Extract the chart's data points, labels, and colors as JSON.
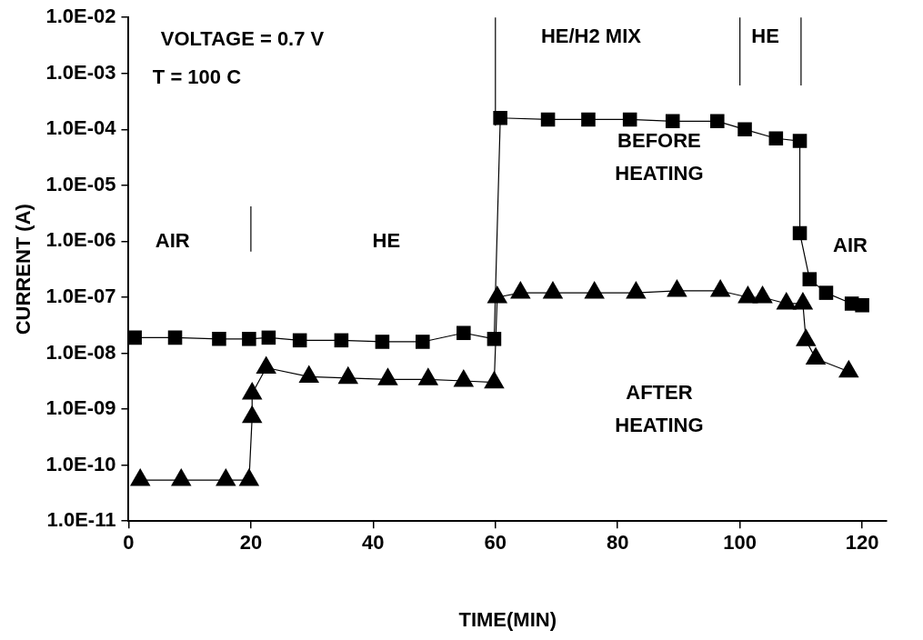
{
  "chart_data": {
    "type": "line",
    "xlabel": "TIME(MIN)",
    "ylabel": "CURRENT (A)",
    "log": "y",
    "grid": false,
    "legend": false,
    "line_style": "solid",
    "xlim": [
      0,
      124
    ],
    "xticks": [
      0,
      20,
      40,
      60,
      80,
      100,
      120
    ],
    "ylim": [
      1e-11,
      0.01
    ],
    "yticks": [
      {
        "value": 1e-11,
        "label": "1.0E-11"
      },
      {
        "value": 1e-10,
        "label": "1.0E-10"
      },
      {
        "value": 1e-09,
        "label": "1.0E-09"
      },
      {
        "value": 1e-08,
        "label": "1.0E-08"
      },
      {
        "value": 1e-07,
        "label": "1.0E-07"
      },
      {
        "value": 1e-06,
        "label": "1.0E-06"
      },
      {
        "value": 1e-05,
        "label": "1.0E-05"
      },
      {
        "value": 0.0001,
        "label": "1.0E-04"
      },
      {
        "value": 0.001,
        "label": "1.0E-03"
      },
      {
        "value": 0.01,
        "label": "1.0E-02"
      }
    ],
    "series": [
      {
        "color": "#000000",
        "marker": "square",
        "x": [
          1,
          7.6,
          14.8,
          19.7,
          22.9,
          28,
          34.8,
          41.5,
          48.1,
          54.8,
          59.8,
          60.8,
          68.6,
          75.2,
          82,
          89,
          96.3,
          100.8,
          105.9,
          109.8,
          109.8,
          111.4,
          114.1,
          118.3,
          120
        ],
        "values": [
          1.9e-08,
          1.9e-08,
          1.8e-08,
          1.8e-08,
          1.9e-08,
          1.7e-08,
          1.7e-08,
          1.6e-08,
          1.6e-08,
          2.3e-08,
          1.8e-08,
          0.00016,
          0.00015,
          0.00015,
          0.00015,
          0.00014,
          0.00014,
          0.0001,
          6.9e-05,
          6.2e-05,
          1.4e-06,
          2.1e-07,
          1.2e-07,
          7.7e-08,
          7.2e-08
        ]
      },
      {
        "color": "#000000",
        "marker": "triangle",
        "x": [
          1.9,
          8.6,
          15.9,
          19.7,
          20.2,
          20.2,
          22.5,
          29.5,
          35.9,
          42.4,
          49,
          54.8,
          59.8,
          60.3,
          64.1,
          69.4,
          76.2,
          83,
          89.7,
          96.8,
          101.3,
          103.7,
          107.6,
          110.3,
          110.8,
          112.4,
          117.8
        ],
        "values": [
          5.4e-11,
          5.4e-11,
          5.4e-11,
          5.4e-11,
          7.2e-10,
          1.9e-09,
          5.5e-09,
          3.8e-09,
          3.6e-09,
          3.4e-09,
          3.4e-09,
          3.2e-09,
          3e-09,
          1e-07,
          1.2e-07,
          1.2e-07,
          1.2e-07,
          1.2e-07,
          1.3e-07,
          1.3e-07,
          1e-07,
          1e-07,
          7.7e-08,
          7.7e-08,
          1.7e-08,
          8e-09,
          4.7e-09
        ]
      }
    ],
    "ref_lines": [
      {
        "axis": "x",
        "value": 20
      },
      {
        "axis": "x",
        "value": 60
      },
      {
        "axis": "x",
        "value": 100
      },
      {
        "axis": "x",
        "value": 110
      }
    ],
    "annotations": [
      "VOLTAGE = 0.7 V",
      "T = 100 C",
      "AIR",
      "HE",
      "HE/H2 MIX",
      "HE",
      "BEFORE\nHEATING",
      "AFTER\nHEATING",
      "AIR"
    ]
  }
}
